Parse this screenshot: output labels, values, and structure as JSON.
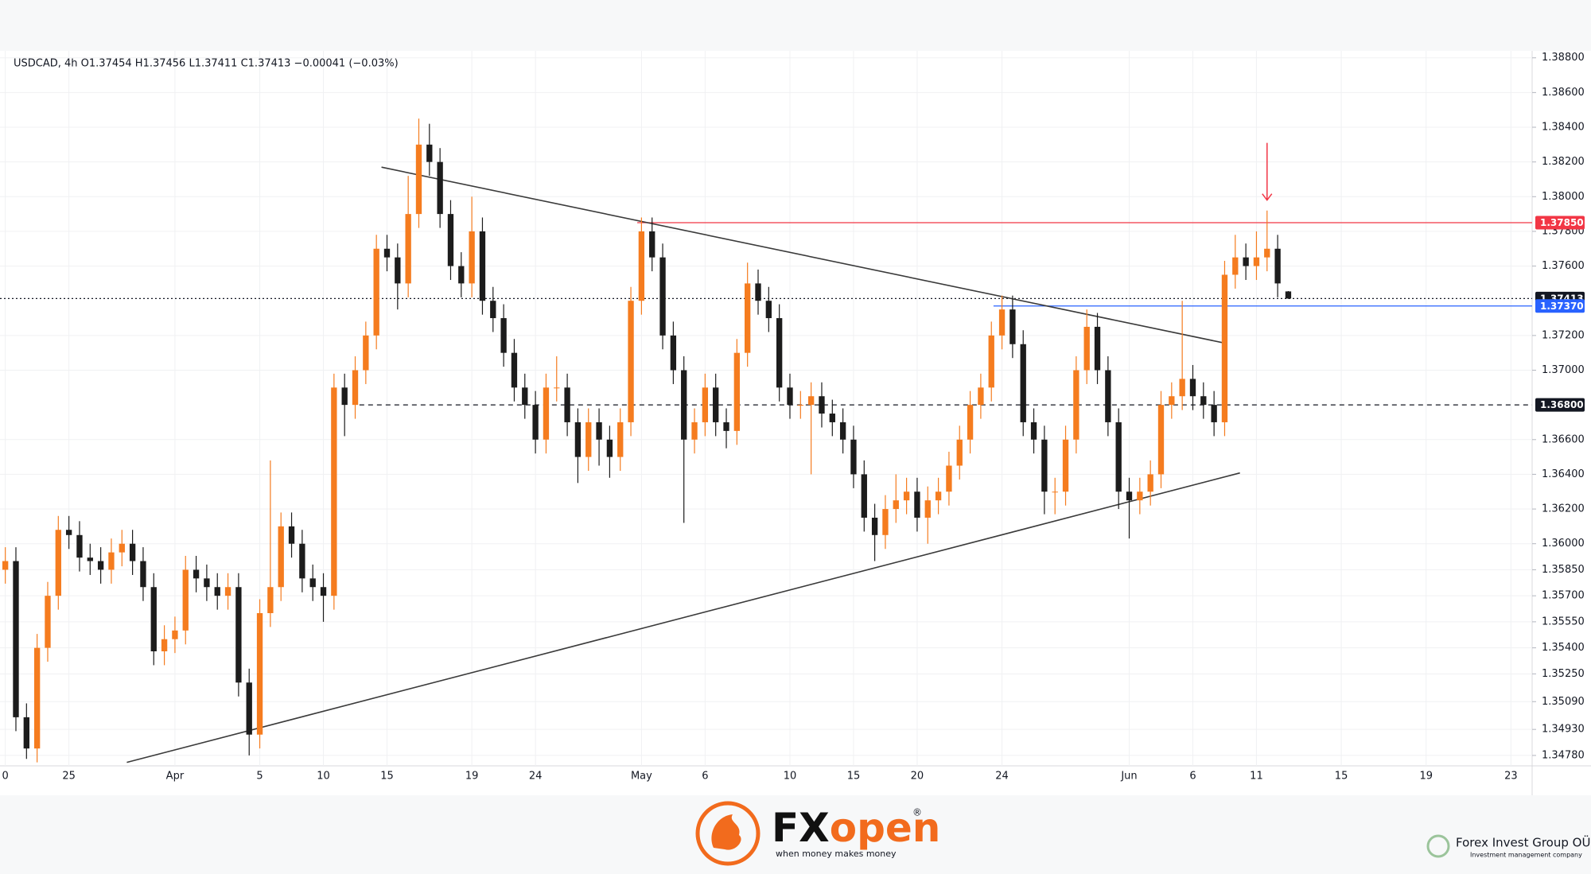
{
  "chart_data": {
    "type": "candlestick",
    "header": "USDCAD, 4h  O1.37454  H1.37456  L1.37411  C1.37413  −0.00041 (−0.03%)",
    "xlim": [
      -3.25,
      69
    ],
    "ylim": [
      1.3472,
      1.3884
    ],
    "xticks": [
      {
        "value": -3,
        "label": "0"
      },
      {
        "value": 0,
        "label": "25"
      },
      {
        "value": 5,
        "label": "Apr"
      },
      {
        "value": 9,
        "label": "5"
      },
      {
        "value": 12,
        "label": "10"
      },
      {
        "value": 15,
        "label": "15"
      },
      {
        "value": 19,
        "label": "19"
      },
      {
        "value": 22,
        "label": "24"
      },
      {
        "value": 27,
        "label": "May"
      },
      {
        "value": 30,
        "label": "6"
      },
      {
        "value": 34,
        "label": "10"
      },
      {
        "value": 37,
        "label": "15"
      },
      {
        "value": 40,
        "label": "20"
      },
      {
        "value": 44,
        "label": "24"
      },
      {
        "value": 50,
        "label": "Jun"
      },
      {
        "value": 53,
        "label": "6"
      },
      {
        "value": 56,
        "label": "11"
      },
      {
        "value": 60,
        "label": "15"
      },
      {
        "value": 64,
        "label": "19"
      },
      {
        "value": 68,
        "label": "23"
      }
    ],
    "yticks": [
      {
        "value": 1.388,
        "label": "1.38800"
      },
      {
        "value": 1.386,
        "label": "1.38600"
      },
      {
        "value": 1.384,
        "label": "1.38400"
      },
      {
        "value": 1.382,
        "label": "1.38200"
      },
      {
        "value": 1.38,
        "label": "1.38000"
      },
      {
        "value": 1.378,
        "label": "1.37800"
      },
      {
        "value": 1.376,
        "label": "1.37600"
      },
      {
        "value": 1.372,
        "label": "1.37200"
      },
      {
        "value": 1.37,
        "label": "1.37000"
      },
      {
        "value": 1.366,
        "label": "1.36600"
      },
      {
        "value": 1.364,
        "label": "1.36400"
      },
      {
        "value": 1.362,
        "label": "1.36200"
      },
      {
        "value": 1.36,
        "label": "1.36000"
      },
      {
        "value": 1.3585,
        "label": "1.35850"
      },
      {
        "value": 1.357,
        "label": "1.35700"
      },
      {
        "value": 1.3555,
        "label": "1.35550"
      },
      {
        "value": 1.354,
        "label": "1.35400"
      },
      {
        "value": 1.3525,
        "label": "1.35250"
      },
      {
        "value": 1.3509,
        "label": "1.35090"
      },
      {
        "value": 1.3493,
        "label": "1.34930"
      },
      {
        "value": 1.3478,
        "label": "1.34780"
      }
    ],
    "x": [
      -3,
      -2.5,
      -2,
      -1.5,
      -1,
      -0.5,
      0,
      0.5,
      1,
      1.5,
      2,
      2.5,
      3,
      3.5,
      4,
      4.5,
      5,
      5.5,
      6,
      6.5,
      7,
      7.5,
      8,
      8.5,
      9,
      9.5,
      10,
      10.5,
      11,
      11.5,
      12,
      12.5,
      13,
      13.5,
      14,
      14.5,
      15,
      15.5,
      16,
      16.5,
      17,
      17.5,
      18,
      18.5,
      19,
      19.5,
      20,
      20.5,
      21,
      21.5,
      22,
      22.5,
      23,
      23.5,
      24,
      24.5,
      25,
      25.5,
      26,
      26.5,
      27,
      27.5,
      28,
      28.5,
      29,
      29.5,
      30,
      30.5,
      31,
      31.5,
      32,
      32.5,
      33,
      33.5,
      34,
      34.5,
      35,
      35.5,
      36,
      36.5,
      37,
      37.5,
      38,
      38.5,
      39,
      39.5,
      40,
      40.5,
      41,
      41.5,
      42,
      42.5,
      43,
      43.5,
      44,
      44.5,
      45,
      45.5,
      46,
      46.5,
      47,
      47.5,
      48,
      48.5,
      49,
      49.5,
      50,
      50.5,
      51,
      51.5,
      52,
      52.5,
      53,
      53.5,
      54,
      54.5,
      55,
      55.5,
      56,
      56.5,
      57,
      57.5
    ],
    "open": [
      1.3585,
      1.359,
      1.35,
      1.3482,
      1.354,
      1.357,
      1.3608,
      1.3605,
      1.3592,
      1.359,
      1.3585,
      1.3595,
      1.36,
      1.359,
      1.3575,
      1.3538,
      1.3545,
      1.355,
      1.3585,
      1.358,
      1.3575,
      1.357,
      1.3575,
      1.352,
      1.349,
      1.356,
      1.3575,
      1.361,
      1.36,
      1.358,
      1.3575,
      1.357,
      1.369,
      1.368,
      1.37,
      1.372,
      1.377,
      1.3765,
      1.375,
      1.379,
      1.383,
      1.382,
      1.379,
      1.376,
      1.375,
      1.378,
      1.374,
      1.373,
      1.371,
      1.369,
      1.368,
      1.366,
      1.369,
      1.369,
      1.367,
      1.365,
      1.367,
      1.366,
      1.365,
      1.367,
      1.374,
      1.378,
      1.3765,
      1.372,
      1.37,
      1.366,
      1.367,
      1.369,
      1.367,
      1.3665,
      1.371,
      1.375,
      1.374,
      1.373,
      1.369,
      1.368,
      1.368,
      1.3685,
      1.3675,
      1.367,
      1.366,
      1.364,
      1.3615,
      1.3605,
      1.362,
      1.3625,
      1.363,
      1.3615,
      1.3625,
      1.363,
      1.3645,
      1.366,
      1.368,
      1.369,
      1.372,
      1.3735,
      1.3715,
      1.367,
      1.366,
      1.363,
      1.363,
      1.366,
      1.37,
      1.3725,
      1.37,
      1.367,
      1.363,
      1.3625,
      1.363,
      1.364,
      1.368,
      1.3685,
      1.3695,
      1.3685,
      1.368,
      1.367,
      1.3755,
      1.3765,
      1.376,
      1.3765,
      1.377,
      1.37454
    ],
    "high": [
      1.3598,
      1.3598,
      1.3508,
      1.3548,
      1.3578,
      1.3616,
      1.3616,
      1.3613,
      1.36,
      1.3598,
      1.3603,
      1.3608,
      1.3608,
      1.3598,
      1.3583,
      1.3553,
      1.3558,
      1.3593,
      1.3593,
      1.3588,
      1.3583,
      1.3583,
      1.3583,
      1.3528,
      1.3568,
      1.3648,
      1.3618,
      1.3618,
      1.3608,
      1.3588,
      1.3583,
      1.3698,
      1.3698,
      1.3708,
      1.3728,
      1.3778,
      1.3778,
      1.3773,
      1.3812,
      1.3845,
      1.3842,
      1.3828,
      1.3798,
      1.3768,
      1.38,
      1.3788,
      1.3748,
      1.3738,
      1.3718,
      1.3698,
      1.3688,
      1.3698,
      1.3708,
      1.3698,
      1.3678,
      1.3678,
      1.3678,
      1.3668,
      1.3678,
      1.3748,
      1.3788,
      1.3788,
      1.3773,
      1.3728,
      1.3708,
      1.3678,
      1.3698,
      1.3698,
      1.3678,
      1.3718,
      1.3762,
      1.3758,
      1.3748,
      1.3738,
      1.3698,
      1.3688,
      1.3693,
      1.3693,
      1.3683,
      1.3678,
      1.3668,
      1.3648,
      1.3623,
      1.3628,
      1.364,
      1.3638,
      1.3638,
      1.3633,
      1.3638,
      1.3653,
      1.3668,
      1.3688,
      1.3698,
      1.3728,
      1.3743,
      1.3743,
      1.3723,
      1.3678,
      1.3668,
      1.3638,
      1.3668,
      1.3708,
      1.3735,
      1.3733,
      1.3708,
      1.3678,
      1.3638,
      1.3638,
      1.3648,
      1.3688,
      1.3693,
      1.374,
      1.3703,
      1.3693,
      1.3688,
      1.3763,
      1.3778,
      1.3773,
      1.378,
      1.3792,
      1.3778,
      1.37456
    ],
    "low": [
      1.3577,
      1.3492,
      1.3476,
      1.3474,
      1.3532,
      1.3562,
      1.3597,
      1.3584,
      1.3582,
      1.3577,
      1.3577,
      1.3587,
      1.3582,
      1.3567,
      1.353,
      1.353,
      1.3537,
      1.3542,
      1.3572,
      1.3567,
      1.3562,
      1.3562,
      1.3512,
      1.3478,
      1.3482,
      1.3552,
      1.3567,
      1.3592,
      1.3572,
      1.3567,
      1.3555,
      1.3562,
      1.3662,
      1.3672,
      1.3692,
      1.3712,
      1.3757,
      1.3735,
      1.3742,
      1.3782,
      1.3812,
      1.3782,
      1.3752,
      1.3742,
      1.3742,
      1.3732,
      1.3722,
      1.3702,
      1.3682,
      1.3672,
      1.3652,
      1.3652,
      1.3682,
      1.3662,
      1.3635,
      1.3642,
      1.3645,
      1.3638,
      1.3642,
      1.3662,
      1.3732,
      1.3757,
      1.3712,
      1.3692,
      1.3612,
      1.3652,
      1.3662,
      1.3662,
      1.3655,
      1.3657,
      1.3702,
      1.3732,
      1.3722,
      1.3682,
      1.3672,
      1.3672,
      1.364,
      1.3667,
      1.3662,
      1.3652,
      1.3632,
      1.3607,
      1.359,
      1.3597,
      1.3612,
      1.3617,
      1.3607,
      1.36,
      1.3617,
      1.3622,
      1.3637,
      1.3652,
      1.3672,
      1.3682,
      1.3712,
      1.3707,
      1.3662,
      1.3652,
      1.3617,
      1.3617,
      1.3622,
      1.3652,
      1.3692,
      1.3692,
      1.3662,
      1.362,
      1.3603,
      1.3617,
      1.3622,
      1.3632,
      1.3672,
      1.3677,
      1.3677,
      1.3672,
      1.3662,
      1.3662,
      1.3747,
      1.3752,
      1.3752,
      1.3757,
      1.3742,
      1.37411
    ],
    "close": [
      1.359,
      1.35,
      1.3482,
      1.354,
      1.357,
      1.3608,
      1.3605,
      1.3592,
      1.359,
      1.3585,
      1.3595,
      1.36,
      1.359,
      1.3575,
      1.3538,
      1.3545,
      1.355,
      1.3585,
      1.358,
      1.3575,
      1.357,
      1.3575,
      1.352,
      1.349,
      1.356,
      1.3575,
      1.361,
      1.36,
      1.358,
      1.3575,
      1.357,
      1.369,
      1.368,
      1.37,
      1.372,
      1.377,
      1.3765,
      1.375,
      1.379,
      1.383,
      1.382,
      1.379,
      1.376,
      1.375,
      1.378,
      1.374,
      1.373,
      1.371,
      1.369,
      1.368,
      1.366,
      1.369,
      1.369,
      1.367,
      1.365,
      1.367,
      1.366,
      1.365,
      1.367,
      1.374,
      1.378,
      1.3765,
      1.372,
      1.37,
      1.366,
      1.367,
      1.369,
      1.367,
      1.3665,
      1.371,
      1.375,
      1.374,
      1.373,
      1.369,
      1.368,
      1.368,
      1.3685,
      1.3675,
      1.367,
      1.366,
      1.364,
      1.3615,
      1.3605,
      1.362,
      1.3625,
      1.363,
      1.3615,
      1.3625,
      1.363,
      1.3645,
      1.366,
      1.368,
      1.369,
      1.372,
      1.3735,
      1.3715,
      1.367,
      1.366,
      1.363,
      1.363,
      1.366,
      1.37,
      1.3725,
      1.37,
      1.367,
      1.363,
      1.3625,
      1.363,
      1.364,
      1.368,
      1.3685,
      1.3695,
      1.3685,
      1.368,
      1.367,
      1.3755,
      1.3765,
      1.376,
      1.3765,
      1.377,
      1.375,
      1.37413
    ],
    "up_color": "#f57c1f",
    "down_color": "#1c1c1c",
    "hlines": [
      {
        "value": 1.3785,
        "label": "1.37850",
        "color": "#f23645",
        "style": "solid",
        "from": 26.8
      },
      {
        "value": 1.37413,
        "label": "1.37413",
        "color": "#131722",
        "style": "dotted"
      },
      {
        "value": 1.3737,
        "label": "1.37370",
        "color": "#2962ff",
        "style": "solid",
        "from": 43.6
      },
      {
        "value": 1.368,
        "label": "1.36800",
        "color": "#131722",
        "style": "dashed",
        "from": 13.7
      }
    ],
    "trendlines": [
      {
        "x": [
          14.74,
          54.55
        ],
        "y": [
          1.3817,
          1.37155
        ],
        "color": "#3a3a3a"
      },
      {
        "x": [
          2.73,
          55.22
        ],
        "y": [
          1.3474,
          1.36408
        ],
        "color": "#3a3a3a"
      }
    ],
    "arrow": {
      "x": 56.5,
      "y": [
        1.3831,
        1.3798
      ],
      "color": "#f23645"
    }
  },
  "branding": {
    "logo_fx": "FX",
    "logo_open": "open",
    "registered": "®",
    "tagline": "when money makes money",
    "company": "Forex Invest Group OÜ",
    "company_sub": "Investment management company"
  }
}
